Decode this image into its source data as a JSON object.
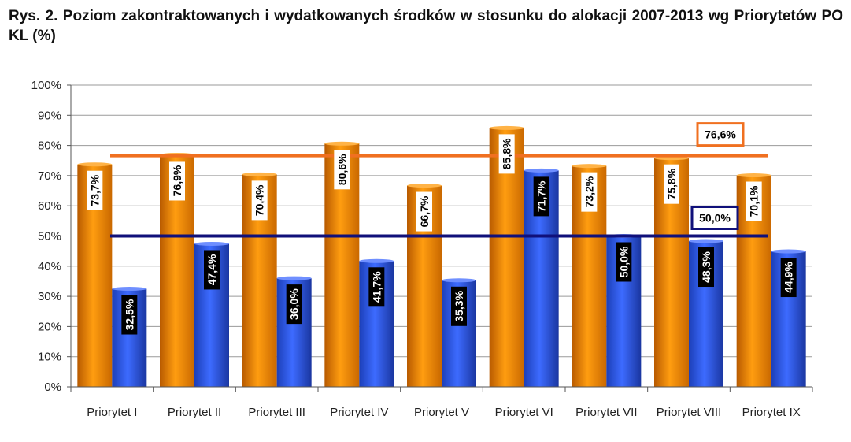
{
  "title": "Rys. 2. Poziom zakontraktowanych i wydatkowanych środków w stosunku do alokacji 2007-2013 wg Priorytetów PO KL (%)",
  "colors": {
    "orange": "#f08a00",
    "blue": "#2a52d8",
    "orange_line": "#f07020",
    "blue_line": "#10107a"
  },
  "chart_data": {
    "type": "bar",
    "title": "Rys. 2. Poziom zakontraktowanych i wydatkowanych środków w stosunku do alokacji 2007-2013 wg Priorytetów PO KL (%)",
    "categories": [
      "Priorytet I",
      "Priorytet II",
      "Priorytet III",
      "Priorytet IV",
      "Priorytet V",
      "Priorytet VI",
      "Priorytet VII",
      "Priorytet VIII",
      "Priorytet IX"
    ],
    "series": [
      {
        "color": "#f08a00",
        "values": [
          73.7,
          76.9,
          70.4,
          80.6,
          66.7,
          85.8,
          73.2,
          75.8,
          70.1
        ],
        "labels": [
          "73,7%",
          "76,9%",
          "70,4%",
          "80,6%",
          "66,7%",
          "85,8%",
          "73,2%",
          "75,8%",
          "70,1%"
        ]
      },
      {
        "color": "#2a52d8",
        "values": [
          32.5,
          47.4,
          36.0,
          41.7,
          35.3,
          71.7,
          50.0,
          48.3,
          44.9
        ],
        "labels": [
          "32,5%",
          "47,4%",
          "36,0%",
          "41,7%",
          "35,3%",
          "71,7%",
          "50,0%",
          "48,3%",
          "44,9%"
        ]
      }
    ],
    "reference_lines": [
      {
        "value": 76.6,
        "label": "76,6%",
        "color": "#f07020"
      },
      {
        "value": 50.0,
        "label": "50,0%",
        "color": "#10107a"
      }
    ],
    "yticks": [
      "0%",
      "10%",
      "20%",
      "30%",
      "40%",
      "50%",
      "60%",
      "70%",
      "80%",
      "90%",
      "100%"
    ],
    "ylim": [
      0,
      100
    ],
    "xlabel": "",
    "ylabel": "",
    "grid": true,
    "legend": "none"
  }
}
